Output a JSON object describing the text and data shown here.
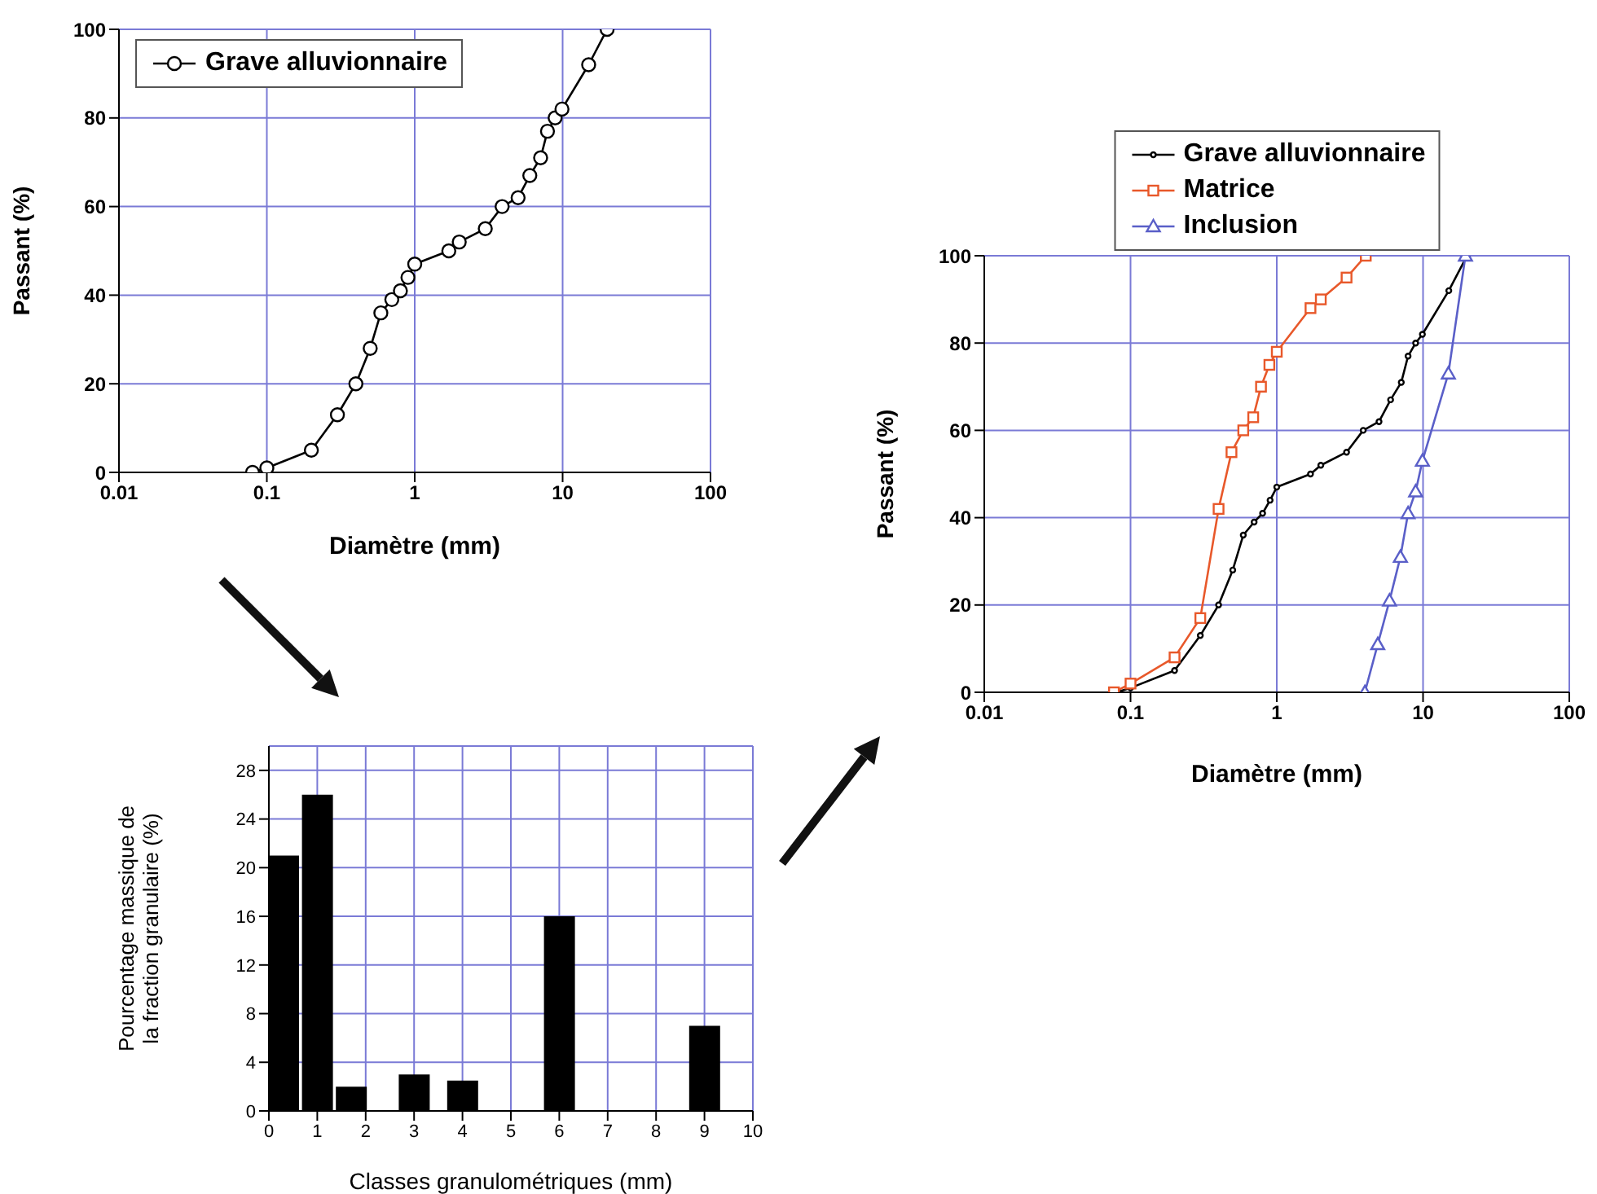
{
  "chart_data": [
    {
      "type": "line",
      "xlabel": "Diamètre (mm)",
      "ylabel": "Passant (%)",
      "log": "x",
      "xlim": [
        0.01,
        100
      ],
      "xticks": [
        0.01,
        0.1,
        1,
        10,
        100
      ],
      "ylim": [
        0,
        100
      ],
      "yticks": [
        0,
        20,
        40,
        60,
        80,
        100
      ],
      "grid": true,
      "legend": "top left",
      "series": [
        {
          "name": "Grave alluvionnaire",
          "color": "#000000",
          "marker": "circle",
          "x": [
            0.08,
            0.1,
            0.2,
            0.3,
            0.4,
            0.5,
            0.59,
            0.7,
            0.8,
            0.9,
            1,
            1.7,
            2,
            3,
            3.9,
            5,
            6,
            7.1,
            7.9,
            8.9,
            9.9,
            15,
            20
          ],
          "values": [
            0,
            1,
            5,
            13,
            20,
            28,
            36,
            39,
            41,
            44,
            47,
            50,
            52,
            55,
            60,
            62,
            67,
            71,
            77,
            80,
            82,
            92,
            100
          ]
        }
      ]
    },
    {
      "type": "bar",
      "xlabel": "Classes granulométriques (mm)",
      "ylabel": "Pourcentage massique de la fraction granulaire (%)",
      "x": [
        0.3,
        1,
        1.7,
        3,
        4,
        6,
        9
      ],
      "values": [
        21,
        26,
        2,
        3,
        2.5,
        16,
        7
      ],
      "color": "#000000",
      "xlim": [
        0,
        10
      ],
      "xticks": [
        0,
        1,
        2,
        3,
        4,
        5,
        6,
        7,
        8,
        9,
        10
      ],
      "ylim": [
        0,
        30
      ],
      "yticks": [
        0,
        4,
        8,
        12,
        16,
        20,
        24,
        28
      ],
      "grid": true
    },
    {
      "type": "line",
      "xlabel": "Diamètre (mm)",
      "ylabel": "Passant (%)",
      "log": "x",
      "xlim": [
        0.01,
        100
      ],
      "xticks": [
        0.01,
        0.1,
        1,
        10,
        100
      ],
      "ylim": [
        0,
        100
      ],
      "yticks": [
        0,
        20,
        40,
        60,
        80,
        100
      ],
      "grid": true,
      "legend": "top",
      "series": [
        {
          "name": "Grave alluvionnaire",
          "color": "#000000",
          "marker": "circle",
          "x": [
            0.08,
            0.1,
            0.2,
            0.3,
            0.4,
            0.5,
            0.59,
            0.7,
            0.8,
            0.9,
            1,
            1.7,
            2,
            3,
            3.9,
            5,
            6,
            7.1,
            7.9,
            8.9,
            9.9,
            15,
            20
          ],
          "values": [
            0,
            1,
            5,
            13,
            20,
            28,
            36,
            39,
            41,
            44,
            47,
            50,
            52,
            55,
            60,
            62,
            67,
            71,
            77,
            80,
            82,
            92,
            100
          ]
        },
        {
          "name": "Matrice",
          "color": "#e8582a",
          "marker": "square",
          "x": [
            0.077,
            0.1,
            0.2,
            0.3,
            0.4,
            0.49,
            0.59,
            0.69,
            0.78,
            0.89,
            1,
            1.7,
            2,
            3,
            4.06
          ],
          "values": [
            0,
            2,
            8,
            17,
            42,
            55,
            60,
            63,
            70,
            75,
            78,
            88,
            90,
            95,
            100
          ]
        },
        {
          "name": "Inclusion",
          "color": "#5a5fc8",
          "marker": "triangle",
          "x": [
            4,
            4.9,
            5.9,
            7,
            7.9,
            8.9,
            9.9,
            14.9,
            19.5
          ],
          "values": [
            0,
            11,
            21,
            31,
            41,
            46,
            53,
            73,
            100
          ]
        }
      ]
    }
  ]
}
